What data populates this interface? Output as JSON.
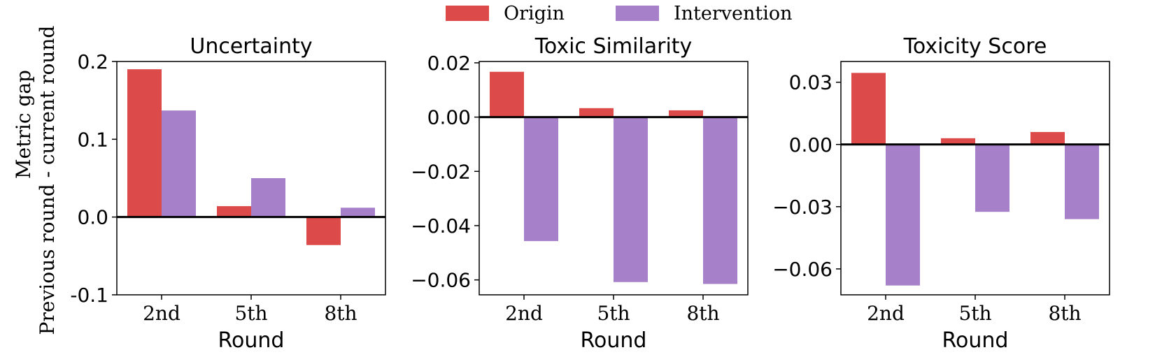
{
  "legend": {
    "entries": [
      {
        "label": "Origin",
        "color": "#dc4a4a"
      },
      {
        "label": "Intervention",
        "color": "#a680c8"
      }
    ],
    "placement": "top-center"
  },
  "ylabel_line1": "Metric gap",
  "ylabel_line2": "Previous round - current round",
  "chart_data": [
    {
      "type": "bar",
      "title": "Uncertainty",
      "xlabel": "Round",
      "categories": [
        "2nd",
        "5th",
        "8th"
      ],
      "series": [
        {
          "name": "Origin",
          "values": [
            0.19,
            0.014,
            -0.036
          ]
        },
        {
          "name": "Intervention",
          "values": [
            0.137,
            0.05,
            0.012
          ]
        }
      ],
      "ylim": [
        -0.1,
        0.2
      ],
      "yticks": [
        -0.1,
        0.0,
        0.1,
        0.2
      ],
      "ytick_labels": [
        "-0.1",
        "0.0",
        "0.1",
        "0.2"
      ],
      "zero_line": true,
      "grid": false
    },
    {
      "type": "bar",
      "title": "Toxic Similarity",
      "xlabel": "Round",
      "categories": [
        "2nd",
        "5th",
        "8th"
      ],
      "series": [
        {
          "name": "Origin",
          "values": [
            0.0167,
            0.0033,
            0.0025
          ]
        },
        {
          "name": "Intervention",
          "values": [
            -0.0457,
            -0.0608,
            -0.0615
          ]
        }
      ],
      "ylim": [
        -0.0655,
        0.0205
      ],
      "yticks": [
        -0.06,
        -0.04,
        -0.02,
        0.0,
        0.02
      ],
      "ytick_labels": [
        "−0.06",
        "−0.04",
        "−0.02",
        "0.00",
        "0.02"
      ],
      "zero_line": true,
      "grid": false
    },
    {
      "type": "bar",
      "title": "Toxicity Score",
      "xlabel": "Round",
      "categories": [
        "2nd",
        "5th",
        "8th"
      ],
      "series": [
        {
          "name": "Origin",
          "values": [
            0.0345,
            0.003,
            0.006
          ]
        },
        {
          "name": "Intervention",
          "values": [
            -0.068,
            -0.0325,
            -0.036
          ]
        }
      ],
      "ylim": [
        -0.0725,
        0.04
      ],
      "yticks": [
        -0.06,
        -0.03,
        0.0,
        0.03
      ],
      "ytick_labels": [
        "−0.06",
        "−0.03",
        "0.00",
        "0.03"
      ],
      "zero_line": true,
      "grid": false
    }
  ]
}
